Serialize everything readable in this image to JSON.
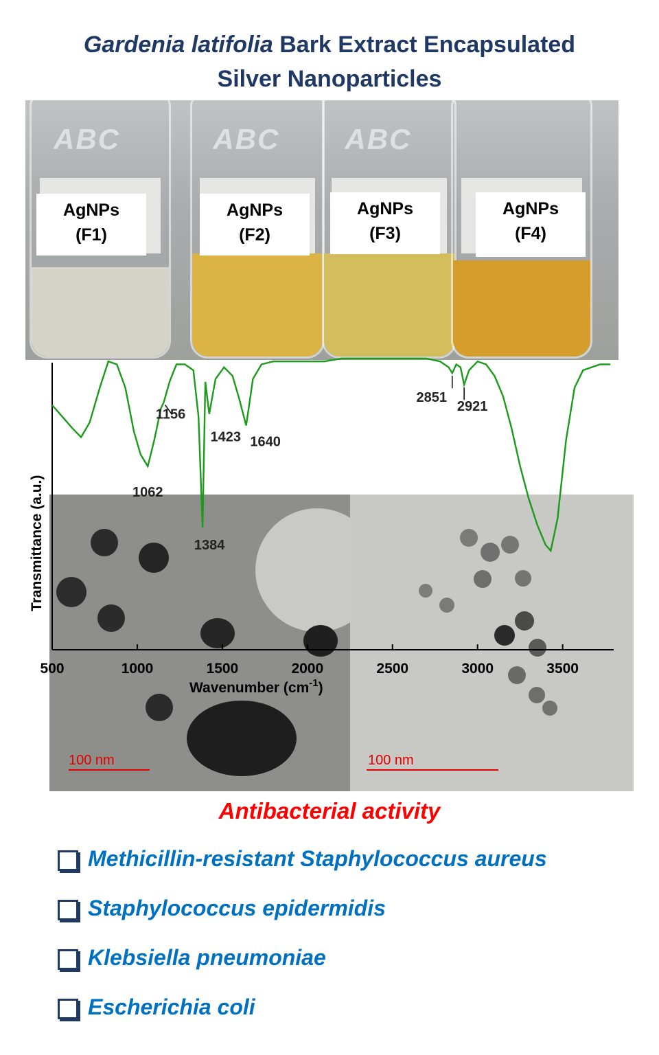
{
  "title": {
    "line1_italic": "Gardenia latifolia",
    "line1_rest": "Bark Extract Encapsulated",
    "line2": "Silver Nanoparticles"
  },
  "vials": [
    {
      "label_top": "AgNPs",
      "label_bottom": "(F1)",
      "color": "#d9d6c6"
    },
    {
      "label_top": "AgNPs",
      "label_bottom": "(F2)",
      "color": "#e0b93c"
    },
    {
      "label_top": "AgNPs",
      "label_bottom": "(F3)",
      "color": "#d7c05a"
    },
    {
      "label_top": "AgNPs",
      "label_bottom": "(F4)",
      "color": "#d9a22a"
    }
  ],
  "chart_data": {
    "type": "line",
    "xlabel": "Wavenumber (cm",
    "xlabel_sup": "-1",
    "ylabel": "Transmittance (a.u.)",
    "xlim": [
      500,
      3800
    ],
    "x_ticks": [
      "500",
      "1000",
      "1500",
      "2000",
      "2500",
      "3000",
      "3500"
    ],
    "series": [
      {
        "color": "#1a9b1a",
        "x": [
          500,
          560,
          620,
          670,
          720,
          780,
          830,
          880,
          930,
          980,
          1020,
          1062,
          1100,
          1140,
          1156,
          1190,
          1230,
          1280,
          1330,
          1360,
          1384,
          1400,
          1423,
          1460,
          1510,
          1560,
          1600,
          1640,
          1680,
          1730,
          1800,
          1900,
          2000,
          2100,
          2200,
          2300,
          2400,
          2500,
          2600,
          2700,
          2780,
          2830,
          2851,
          2875,
          2900,
          2921,
          2950,
          3000,
          3050,
          3100,
          3150,
          3200,
          3250,
          3300,
          3350,
          3400,
          3430,
          3470,
          3520,
          3570,
          3620,
          3670,
          3720,
          3780
        ],
        "y": [
          0.84,
          0.8,
          0.76,
          0.73,
          0.78,
          0.9,
          0.99,
          0.98,
          0.9,
          0.75,
          0.67,
          0.63,
          0.72,
          0.83,
          0.85,
          0.92,
          0.98,
          0.98,
          0.96,
          0.8,
          0.42,
          0.92,
          0.81,
          0.93,
          0.97,
          0.94,
          0.86,
          0.77,
          0.93,
          0.98,
          0.99,
          0.99,
          0.99,
          0.99,
          1.0,
          1.0,
          1.0,
          1.0,
          1.0,
          1.0,
          0.99,
          0.97,
          0.95,
          0.98,
          0.97,
          0.91,
          0.96,
          0.99,
          0.98,
          0.94,
          0.87,
          0.76,
          0.63,
          0.52,
          0.43,
          0.36,
          0.34,
          0.45,
          0.72,
          0.9,
          0.96,
          0.97,
          0.98,
          0.98
        ]
      }
    ],
    "annotations": [
      {
        "text": "1062",
        "x": 1062
      },
      {
        "text": "1156",
        "x": 1156
      },
      {
        "text": "1384",
        "x": 1384
      },
      {
        "text": "1423",
        "x": 1423
      },
      {
        "text": "1640",
        "x": 1640
      },
      {
        "text": "2851",
        "x": 2851
      },
      {
        "text": "2921",
        "x": 2921
      }
    ]
  },
  "tem": {
    "left_scale": "100 nm",
    "right_scale": "100 nm"
  },
  "subtitle": "Antibacterial activity",
  "bacteria": [
    "Methicillin-resistant Staphylococcus aureus",
    "Staphylococcus epidermidis",
    "Klebsiella pneumoniae",
    "Escherichia coli"
  ],
  "colors": {
    "title": "#1f3864",
    "subtitle": "#ff0000",
    "list_text": "#0070c0",
    "scale_bar": "#e30000",
    "spectrum": "#1a9b1a"
  }
}
